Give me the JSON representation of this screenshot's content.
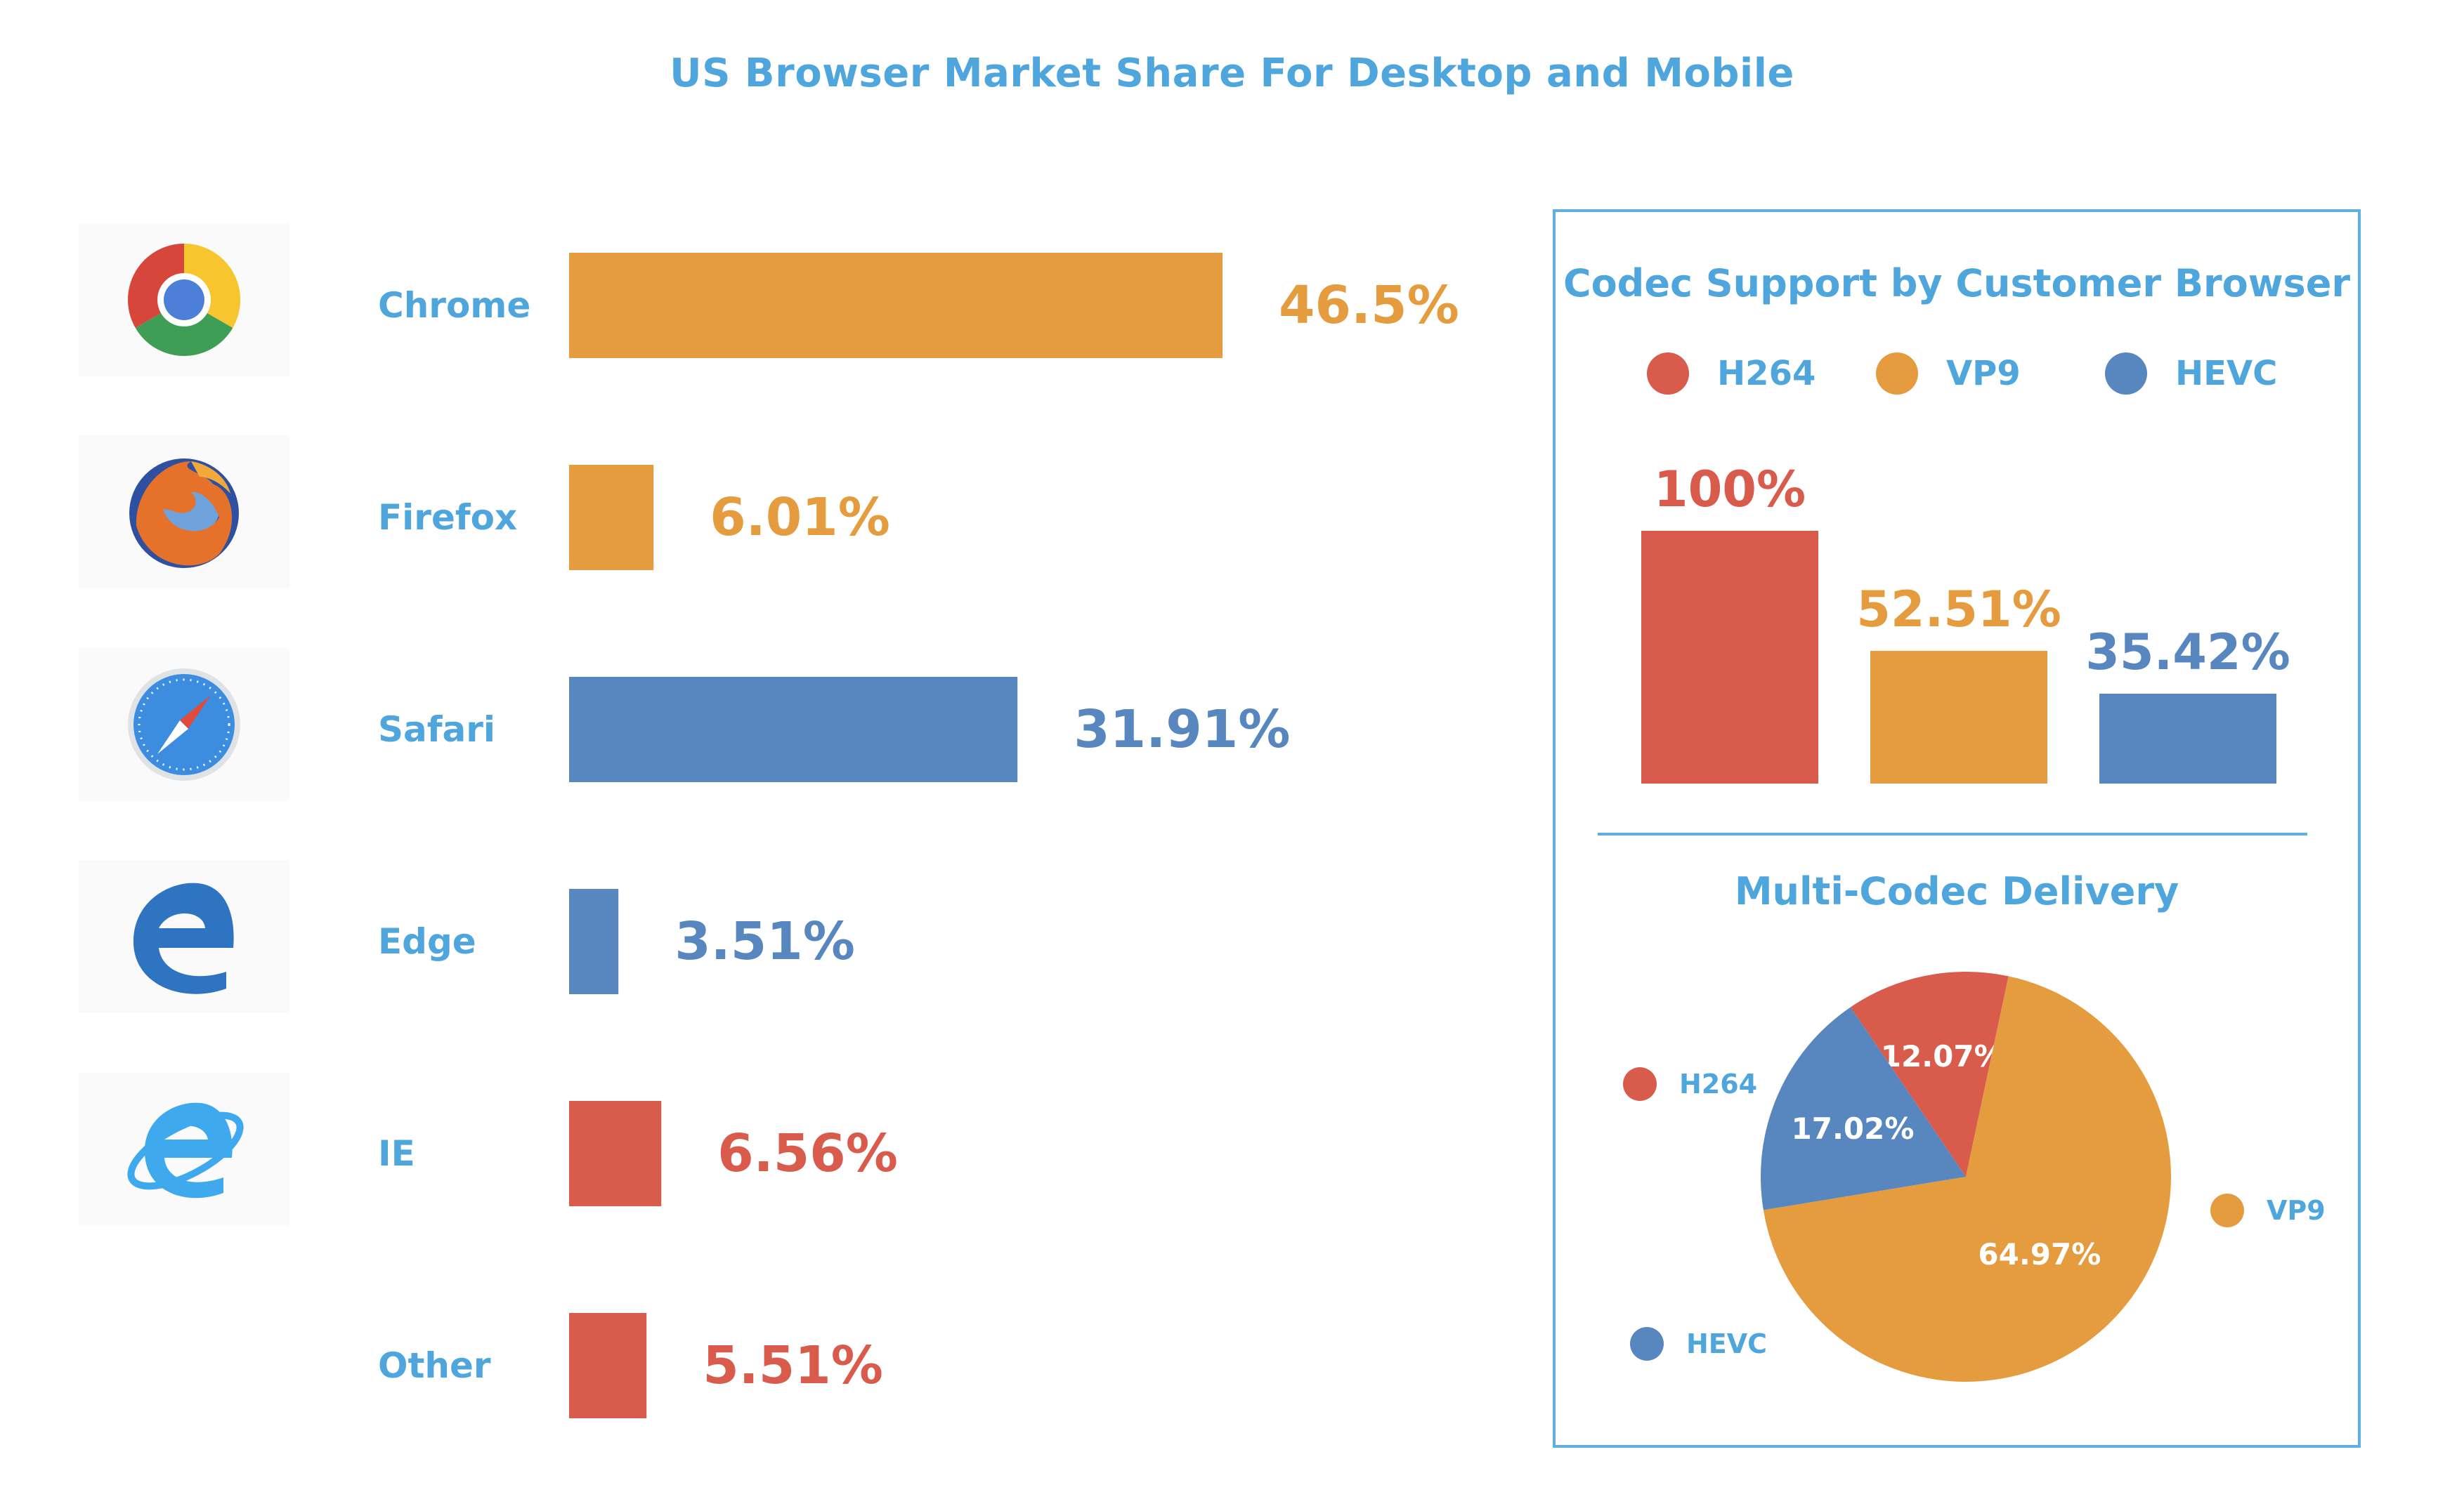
{
  "chart_data": [
    {
      "type": "bar",
      "orientation": "horizontal",
      "title": "US Browser Market Share For Desktop and Mobile",
      "categories": [
        "Chrome",
        "Firefox",
        "Safari",
        "Edge",
        "IE",
        "Other"
      ],
      "values": [
        46.5,
        6.01,
        31.91,
        3.51,
        6.56,
        5.51
      ],
      "value_labels": [
        "46.5%",
        "6.01%",
        "31.91%",
        "3.51%",
        "6.56%",
        "5.51%"
      ],
      "colors": [
        "#e59c3f",
        "#e59c3f",
        "#5787be",
        "#5787be",
        "#d85b4c",
        "#d85b4c"
      ],
      "icons": [
        "chrome-icon",
        "firefox-icon",
        "safari-icon",
        "edge-icon",
        "internet-explorer-icon",
        null
      ],
      "xlim": [
        0,
        46.5
      ],
      "grid": false
    },
    {
      "type": "bar",
      "title": "Codec Support by Customer Browser",
      "categories": [
        "H264",
        "VP9",
        "HEVC"
      ],
      "values": [
        100,
        52.51,
        35.42
      ],
      "value_labels": [
        "100%",
        "52.51%",
        "35.42%"
      ],
      "colors": [
        "#d85b4c",
        "#e59c3f",
        "#5787be"
      ],
      "legend": [
        "H264",
        "VP9",
        "HEVC"
      ],
      "legend_position": "top",
      "ylim": [
        0,
        100
      ],
      "grid": false
    },
    {
      "type": "pie",
      "title": "Multi-Codec Delivery",
      "slices": [
        {
          "name": "H264",
          "value": 12.07,
          "label": "12.07%",
          "color": "#d85b4c"
        },
        {
          "name": "VP9",
          "value": 64.97,
          "label": "64.97%",
          "color": "#e59c3f"
        },
        {
          "name": "HEVC",
          "value": 17.02,
          "label": "17.02%",
          "color": "#5787be"
        }
      ],
      "legend": [
        "H264",
        "VP9",
        "HEVC"
      ],
      "legend_position": "around"
    }
  ],
  "colors": {
    "title": "#4fa6dd",
    "orange": "#e59c3f",
    "blue": "#5787be",
    "red": "#d85b4c",
    "panel_border": "#5fb0e0"
  }
}
